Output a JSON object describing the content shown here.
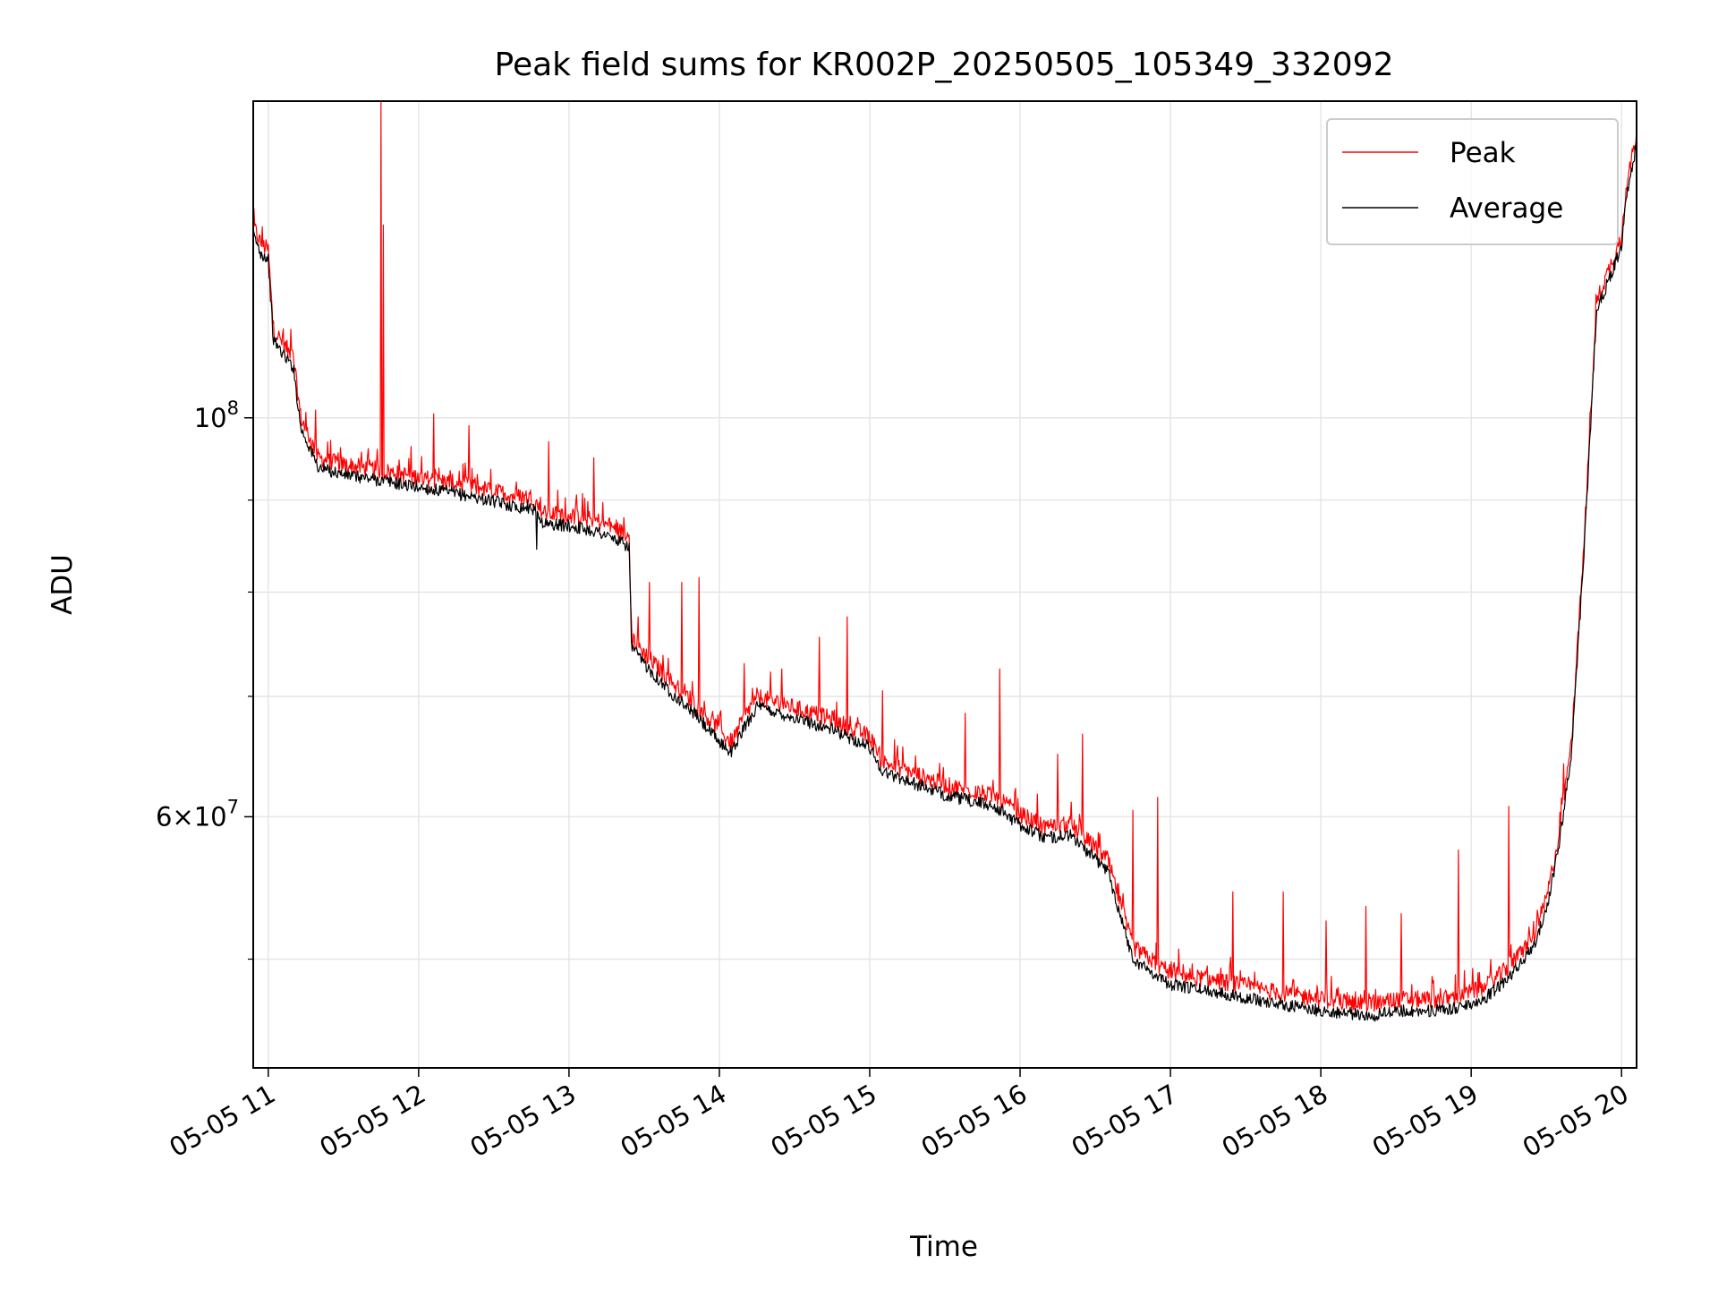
{
  "chart_data": {
    "type": "line",
    "title": "Peak field sums for KR002P_20250505_105349_332092",
    "xlabel": "Time",
    "ylabel": "ADU",
    "yscale": "log",
    "grid": true,
    "legend_position": "upper right",
    "xlim": [
      "2025-05-05 10:54",
      "2025-05-05 20:06"
    ],
    "ylim": [
      43500000,
      150000000
    ],
    "x_ticks": [
      {
        "t": "2025-05-05 11:00",
        "label": "05-05 11"
      },
      {
        "t": "2025-05-05 12:00",
        "label": "05-05 12"
      },
      {
        "t": "2025-05-05 13:00",
        "label": "05-05 13"
      },
      {
        "t": "2025-05-05 14:00",
        "label": "05-05 14"
      },
      {
        "t": "2025-05-05 15:00",
        "label": "05-05 15"
      },
      {
        "t": "2025-05-05 16:00",
        "label": "05-05 16"
      },
      {
        "t": "2025-05-05 17:00",
        "label": "05-05 17"
      },
      {
        "t": "2025-05-05 18:00",
        "label": "05-05 18"
      },
      {
        "t": "2025-05-05 19:00",
        "label": "05-05 19"
      },
      {
        "t": "2025-05-05 20:00",
        "label": "05-05 20"
      }
    ],
    "y_ticks": [
      {
        "value": 100000000,
        "base": "10",
        "exp": "8",
        "coef": ""
      },
      {
        "value": 60000000,
        "base": "10",
        "exp": "7",
        "coef": "6"
      }
    ],
    "y_minor_ticks": [
      50000000,
      70000000,
      80000000,
      90000000
    ],
    "colors": {
      "peak": "#ff0000",
      "average": "#000000",
      "grid": "#e6e6e6"
    },
    "series": [
      {
        "name": "Peak",
        "color": "#ff0000",
        "baseline": [
          [
            "2025-05-05 10:54",
            128000000
          ],
          [
            "2025-05-05 10:57",
            125000000
          ],
          [
            "2025-05-05 11:00",
            124000000
          ],
          [
            "2025-05-05 11:02",
            112000000
          ],
          [
            "2025-05-05 11:06",
            110000000
          ],
          [
            "2025-05-05 11:10",
            108000000
          ],
          [
            "2025-05-05 11:13",
            100000000
          ],
          [
            "2025-05-05 11:20",
            95000000
          ],
          [
            "2025-05-05 11:30",
            94200000
          ],
          [
            "2025-05-05 11:45",
            93500000
          ],
          [
            "2025-05-05 12:00",
            92700000
          ],
          [
            "2025-05-05 12:20",
            91700000
          ],
          [
            "2025-05-05 12:40",
            90400000
          ],
          [
            "2025-05-05 12:45",
            90400000
          ],
          [
            "2025-05-05 12:50",
            88500000
          ],
          [
            "2025-05-05 13:00",
            88300000
          ],
          [
            "2025-05-05 13:12",
            87600000
          ],
          [
            "2025-05-05 13:24",
            86000000
          ],
          [
            "2025-05-05 13:25",
            75500000
          ],
          [
            "2025-05-05 13:30",
            74000000
          ],
          [
            "2025-05-05 13:40",
            71500000
          ],
          [
            "2025-05-05 13:50",
            69500000
          ],
          [
            "2025-05-05 14:00",
            67000000
          ],
          [
            "2025-05-05 14:05",
            66000000
          ],
          [
            "2025-05-05 14:10",
            68200000
          ],
          [
            "2025-05-05 14:15",
            70000000
          ],
          [
            "2025-05-05 14:30",
            69000000
          ],
          [
            "2025-05-05 14:45",
            68000000
          ],
          [
            "2025-05-05 15:00",
            66500000
          ],
          [
            "2025-05-05 15:05",
            64400000
          ],
          [
            "2025-05-05 15:30",
            62500000
          ],
          [
            "2025-05-05 15:50",
            61600000
          ],
          [
            "2025-05-05 16:00",
            60200000
          ],
          [
            "2025-05-05 16:10",
            59200000
          ],
          [
            "2025-05-05 16:20",
            59400000
          ],
          [
            "2025-05-05 16:35",
            56800000
          ],
          [
            "2025-05-05 16:45",
            50800000
          ],
          [
            "2025-05-05 17:00",
            49100000
          ],
          [
            "2025-05-05 17:20",
            48600000
          ],
          [
            "2025-05-05 17:40",
            48000000
          ],
          [
            "2025-05-05 18:00",
            47500000
          ],
          [
            "2025-05-05 18:20",
            47200000
          ],
          [
            "2025-05-05 18:30",
            47500000
          ],
          [
            "2025-05-05 18:50",
            47500000
          ],
          [
            "2025-05-05 19:05",
            48200000
          ],
          [
            "2025-05-05 19:15",
            49500000
          ],
          [
            "2025-05-05 19:25",
            51500000
          ],
          [
            "2025-05-05 19:30",
            54000000
          ],
          [
            "2025-05-05 19:35",
            58500000
          ],
          [
            "2025-05-05 19:40",
            66000000
          ],
          [
            "2025-05-05 19:45",
            85000000
          ],
          [
            "2025-05-05 19:50",
            116000000
          ],
          [
            "2025-05-05 19:55",
            121000000
          ],
          [
            "2025-05-05 20:00",
            126000000
          ],
          [
            "2025-05-05 20:02",
            135000000
          ],
          [
            "2025-05-05 20:06",
            144000000
          ]
        ],
        "spikes": [
          [
            "2025-05-05 11:45",
            150000000
          ],
          [
            "2025-05-05 11:46",
            128000000
          ],
          [
            "2025-05-05 11:09",
            112000000
          ],
          [
            "2025-05-05 11:19",
            101000000
          ],
          [
            "2025-05-05 12:06",
            100500000
          ],
          [
            "2025-05-05 12:20",
            99000000
          ],
          [
            "2025-05-05 12:52",
            97000000
          ],
          [
            "2025-05-05 13:10",
            95000000
          ],
          [
            "2025-05-05 13:22",
            88000000
          ],
          [
            "2025-05-05 13:32",
            81000000
          ],
          [
            "2025-05-05 13:45",
            81000000
          ],
          [
            "2025-05-05 13:52",
            81500000
          ],
          [
            "2025-05-05 14:10",
            73000000
          ],
          [
            "2025-05-05 14:25",
            72500000
          ],
          [
            "2025-05-05 14:40",
            75500000
          ],
          [
            "2025-05-05 14:51",
            77500000
          ],
          [
            "2025-05-05 15:05",
            70500000
          ],
          [
            "2025-05-05 15:38",
            68500000
          ],
          [
            "2025-05-05 15:52",
            72500000
          ],
          [
            "2025-05-05 16:15",
            65000000
          ],
          [
            "2025-05-05 16:25",
            66700000
          ],
          [
            "2025-05-05 16:45",
            60500000
          ],
          [
            "2025-05-05 16:55",
            61500000
          ],
          [
            "2025-05-05 17:25",
            54500000
          ],
          [
            "2025-05-05 17:45",
            54500000
          ],
          [
            "2025-05-05 18:02",
            52500000
          ],
          [
            "2025-05-05 18:18",
            53500000
          ],
          [
            "2025-05-05 18:32",
            53000000
          ],
          [
            "2025-05-05 18:55",
            57500000
          ],
          [
            "2025-05-05 19:15",
            60800000
          ],
          [
            "2025-05-05 19:37",
            64200000
          ]
        ]
      },
      {
        "name": "Average",
        "color": "#000000",
        "baseline": [
          [
            "2025-05-05 10:54",
            126500000
          ],
          [
            "2025-05-05 10:57",
            123500000
          ],
          [
            "2025-05-05 11:00",
            122500000
          ],
          [
            "2025-05-05 11:02",
            110500000
          ],
          [
            "2025-05-05 11:06",
            108500000
          ],
          [
            "2025-05-05 11:10",
            106700000
          ],
          [
            "2025-05-05 11:13",
            98700000
          ],
          [
            "2025-05-05 11:20",
            93800000
          ],
          [
            "2025-05-05 11:30",
            93000000
          ],
          [
            "2025-05-05 11:45",
            92300000
          ],
          [
            "2025-05-05 12:00",
            91500000
          ],
          [
            "2025-05-05 12:20",
            90500000
          ],
          [
            "2025-05-05 12:40",
            89200000
          ],
          [
            "2025-05-05 12:45",
            89200000
          ],
          [
            "2025-05-05 12:50",
            87300000
          ],
          [
            "2025-05-05 13:00",
            87100000
          ],
          [
            "2025-05-05 13:12",
            86400000
          ],
          [
            "2025-05-05 13:24",
            84800000
          ],
          [
            "2025-05-05 13:25",
            74500000
          ],
          [
            "2025-05-05 13:30",
            73000000
          ],
          [
            "2025-05-05 13:40",
            70500000
          ],
          [
            "2025-05-05 13:50",
            68500000
          ],
          [
            "2025-05-05 14:00",
            66000000
          ],
          [
            "2025-05-05 14:05",
            65200000
          ],
          [
            "2025-05-05 14:10",
            67300000
          ],
          [
            "2025-05-05 14:15",
            69100000
          ],
          [
            "2025-05-05 14:30",
            68100000
          ],
          [
            "2025-05-05 14:45",
            67100000
          ],
          [
            "2025-05-05 15:00",
            65600000
          ],
          [
            "2025-05-05 15:05",
            63600000
          ],
          [
            "2025-05-05 15:30",
            61700000
          ],
          [
            "2025-05-05 15:50",
            60800000
          ],
          [
            "2025-05-05 16:00",
            59400000
          ],
          [
            "2025-05-05 16:10",
            58400000
          ],
          [
            "2025-05-05 16:20",
            58600000
          ],
          [
            "2025-05-05 16:35",
            56000000
          ],
          [
            "2025-05-05 16:45",
            50000000
          ],
          [
            "2025-05-05 17:00",
            48400000
          ],
          [
            "2025-05-05 17:20",
            47900000
          ],
          [
            "2025-05-05 17:40",
            47300000
          ],
          [
            "2025-05-05 18:00",
            46800000
          ],
          [
            "2025-05-05 18:20",
            46500000
          ],
          [
            "2025-05-05 18:30",
            46800000
          ],
          [
            "2025-05-05 18:50",
            46800000
          ],
          [
            "2025-05-05 19:05",
            47500000
          ],
          [
            "2025-05-05 19:15",
            48800000
          ],
          [
            "2025-05-05 19:25",
            50800000
          ],
          [
            "2025-05-05 19:30",
            53300000
          ],
          [
            "2025-05-05 19:35",
            57800000
          ],
          [
            "2025-05-05 19:40",
            65200000
          ],
          [
            "2025-05-05 19:45",
            84000000
          ],
          [
            "2025-05-05 19:50",
            114500000
          ],
          [
            "2025-05-05 19:55",
            119500000
          ],
          [
            "2025-05-05 20:00",
            124500000
          ],
          [
            "2025-05-05 20:02",
            133000000
          ],
          [
            "2025-05-05 20:06",
            142000000
          ]
        ],
        "spikes": [
          [
            "2025-05-05 12:47",
            84500000
          ]
        ]
      }
    ]
  }
}
